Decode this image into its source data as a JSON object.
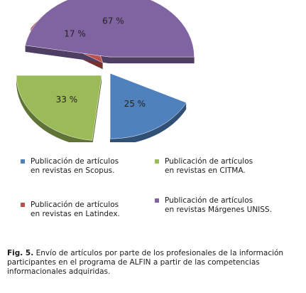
{
  "chart_data": {
    "type": "pie",
    "categories": [
      "Publicación de artículos en revistas en Scopus.",
      "Publicación de artículos en revistas en CITMA.",
      "Publicación de artículos en revistas en Latindex.",
      "Publicación de artículos en revistas Márgenes UNISS."
    ],
    "values": [
      25,
      33,
      17,
      67
    ],
    "data_labels": [
      "25 %",
      "33 %",
      "17 %",
      "67 %"
    ],
    "colors": [
      "#4F81BD",
      "#9BBB59",
      "#C0504D",
      "#8064A2"
    ],
    "legend_position": "bottom",
    "title": ""
  },
  "legend": {
    "scopus": {
      "line1": "Publicación de artículos",
      "line2": "en revistas en Scopus.",
      "color": "#4F81BD"
    },
    "citma": {
      "line1": "Publicación de artículos",
      "line2": "en revistas en CITMA.",
      "color": "#9BBB59"
    },
    "latindex": {
      "line1": "Publicación de artículos",
      "line2": "en revistas en Latindex.",
      "color": "#C0504D"
    },
    "margenes": {
      "line1": "Publicación de artículos",
      "line2": "en revistas Márgenes UNISS.",
      "color": "#8064A2"
    }
  },
  "caption": {
    "label": "Fig. 5.",
    "text": " Envío de artículos por parte de los profesionales de la información participantes en el programa de ALFIN a partir de las competencias informacionales adquiridas."
  }
}
